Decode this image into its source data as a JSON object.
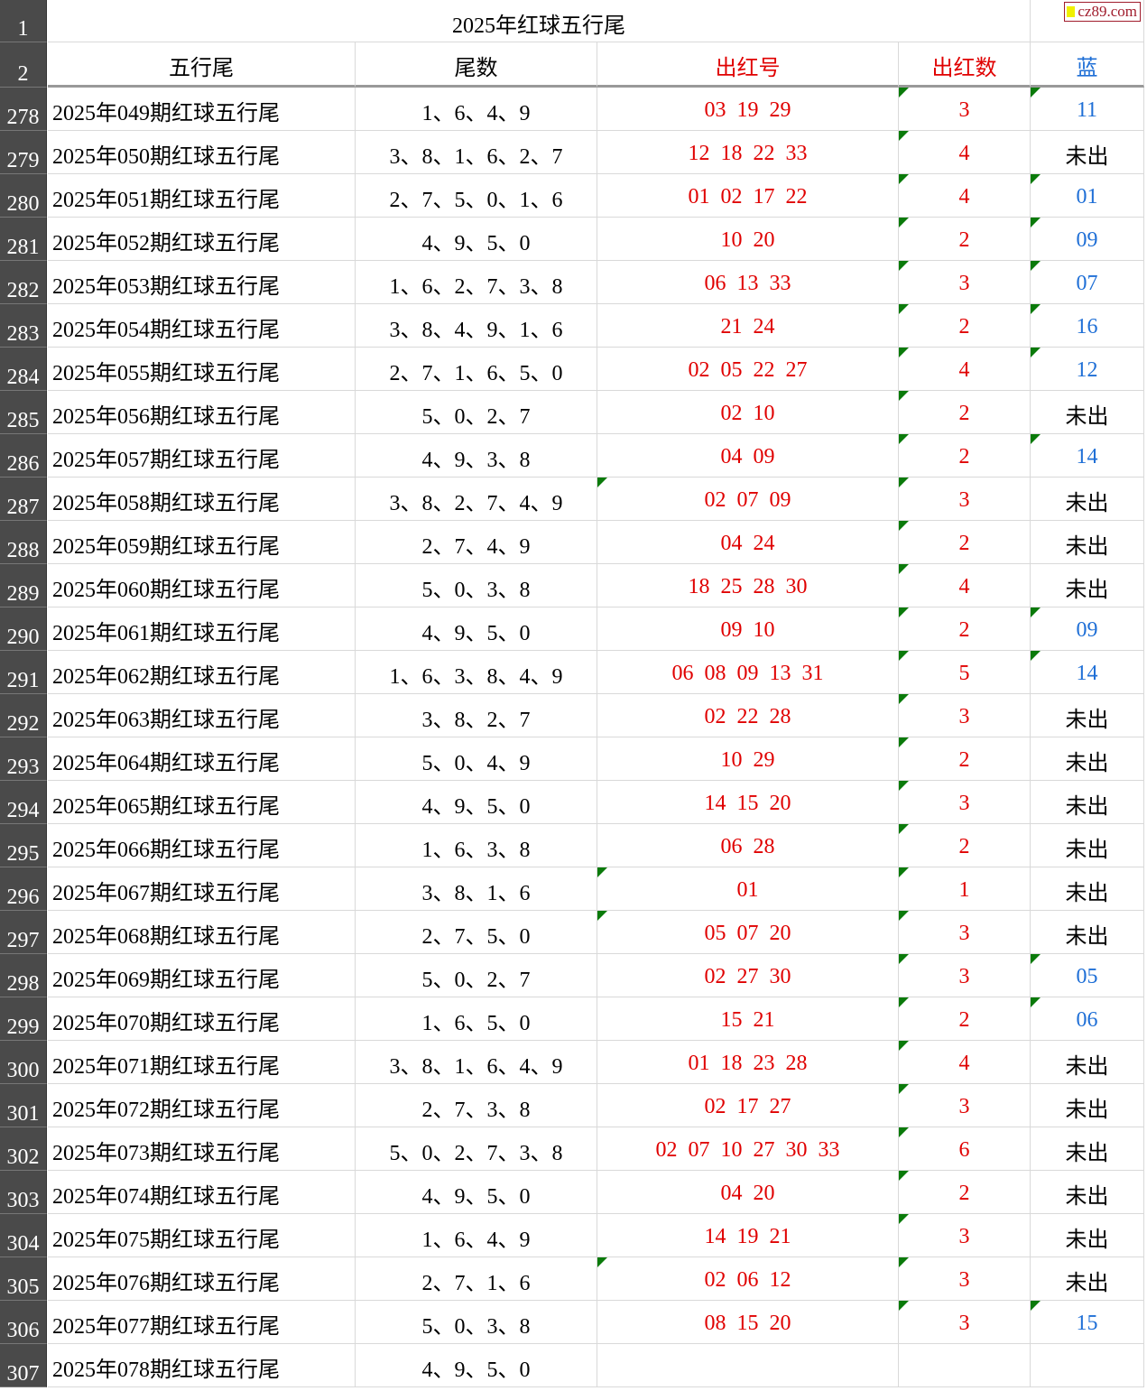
{
  "title": "2025年红球五行尾",
  "logo": "cz89.com",
  "title_row_num": "1",
  "header_row_num": "2",
  "headers": [
    "五行尾",
    "尾数",
    "出红号",
    "出红数",
    "蓝"
  ],
  "colors": {
    "red": "#e00000",
    "blue": "#1f6fd6",
    "marker": "#0a7a0a",
    "row_header_bg": "#4a4a4a"
  },
  "rows": [
    {
      "n": "278",
      "period": "2025年049期红球五行尾",
      "tails": "1、6、4、9",
      "reds": "03  19  29",
      "count": "3",
      "blue": "11",
      "flag": false
    },
    {
      "n": "279",
      "period": "2025年050期红球五行尾",
      "tails": "3、8、1、6、2、7",
      "reds": "12  18  22  33",
      "count": "4",
      "blue": "未出",
      "flag": false
    },
    {
      "n": "280",
      "period": "2025年051期红球五行尾",
      "tails": "2、7、5、0、1、6",
      "reds": "01  02  17  22",
      "count": "4",
      "blue": "01",
      "flag": false
    },
    {
      "n": "281",
      "period": "2025年052期红球五行尾",
      "tails": "4、9、5、0",
      "reds": "10  20",
      "count": "2",
      "blue": "09",
      "flag": false
    },
    {
      "n": "282",
      "period": "2025年053期红球五行尾",
      "tails": "1、6、2、7、3、8",
      "reds": "06  13  33",
      "count": "3",
      "blue": "07",
      "flag": false
    },
    {
      "n": "283",
      "period": "2025年054期红球五行尾",
      "tails": "3、8、4、9、1、6",
      "reds": "21  24",
      "count": "2",
      "blue": "16",
      "flag": false
    },
    {
      "n": "284",
      "period": "2025年055期红球五行尾",
      "tails": "2、7、1、6、5、0",
      "reds": "02  05  22  27",
      "count": "4",
      "blue": "12",
      "flag": false
    },
    {
      "n": "285",
      "period": "2025年056期红球五行尾",
      "tails": "5、0、2、7",
      "reds": "02  10",
      "count": "2",
      "blue": "未出",
      "flag": false
    },
    {
      "n": "286",
      "period": "2025年057期红球五行尾",
      "tails": "4、9、3、8",
      "reds": "04  09",
      "count": "2",
      "blue": "14",
      "flag": false
    },
    {
      "n": "287",
      "period": "2025年058期红球五行尾",
      "tails": "3、8、2、7、4、9",
      "reds": "02  07  09",
      "count": "3",
      "blue": "未出",
      "flag": true
    },
    {
      "n": "288",
      "period": "2025年059期红球五行尾",
      "tails": "2、7、4、9",
      "reds": "04  24",
      "count": "2",
      "blue": "未出",
      "flag": false
    },
    {
      "n": "289",
      "period": "2025年060期红球五行尾",
      "tails": "5、0、3、8",
      "reds": "18  25  28  30",
      "count": "4",
      "blue": "未出",
      "flag": false
    },
    {
      "n": "290",
      "period": "2025年061期红球五行尾",
      "tails": "4、9、5、0",
      "reds": "09  10",
      "count": "2",
      "blue": "09",
      "flag": false
    },
    {
      "n": "291",
      "period": "2025年062期红球五行尾",
      "tails": "1、6、3、8、4、9",
      "reds": "06  08  09  13  31",
      "count": "5",
      "blue": "14",
      "flag": false
    },
    {
      "n": "292",
      "period": "2025年063期红球五行尾",
      "tails": "3、8、2、7",
      "reds": "02  22  28",
      "count": "3",
      "blue": "未出",
      "flag": false
    },
    {
      "n": "293",
      "period": "2025年064期红球五行尾",
      "tails": "5、0、4、9",
      "reds": "10  29",
      "count": "2",
      "blue": "未出",
      "flag": false
    },
    {
      "n": "294",
      "period": "2025年065期红球五行尾",
      "tails": "4、9、5、0",
      "reds": "14  15  20",
      "count": "3",
      "blue": "未出",
      "flag": false
    },
    {
      "n": "295",
      "period": "2025年066期红球五行尾",
      "tails": "1、6、3、8",
      "reds": "06  28",
      "count": "2",
      "blue": "未出",
      "flag": false
    },
    {
      "n": "296",
      "period": "2025年067期红球五行尾",
      "tails": "3、8、1、6",
      "reds": "01",
      "count": "1",
      "blue": "未出",
      "flag": true
    },
    {
      "n": "297",
      "period": "2025年068期红球五行尾",
      "tails": "2、7、5、0",
      "reds": "05  07  20",
      "count": "3",
      "blue": "未出",
      "flag": true
    },
    {
      "n": "298",
      "period": "2025年069期红球五行尾",
      "tails": "5、0、2、7",
      "reds": "02  27  30",
      "count": "3",
      "blue": "05",
      "flag": false
    },
    {
      "n": "299",
      "period": "2025年070期红球五行尾",
      "tails": "1、6、5、0",
      "reds": "15  21",
      "count": "2",
      "blue": "06",
      "flag": false
    },
    {
      "n": "300",
      "period": "2025年071期红球五行尾",
      "tails": "3、8、1、6、4、9",
      "reds": "01  18  23  28",
      "count": "4",
      "blue": "未出",
      "flag": false
    },
    {
      "n": "301",
      "period": "2025年072期红球五行尾",
      "tails": "2、7、3、8",
      "reds": "02  17  27",
      "count": "3",
      "blue": "未出",
      "flag": false
    },
    {
      "n": "302",
      "period": "2025年073期红球五行尾",
      "tails": "5、0、2、7、3、8",
      "reds": "02  07  10  27  30  33",
      "count": "6",
      "blue": "未出",
      "flag": false
    },
    {
      "n": "303",
      "period": "2025年074期红球五行尾",
      "tails": "4、9、5、0",
      "reds": "04  20",
      "count": "2",
      "blue": "未出",
      "flag": false
    },
    {
      "n": "304",
      "period": "2025年075期红球五行尾",
      "tails": "1、6、4、9",
      "reds": "14  19  21",
      "count": "3",
      "blue": "未出",
      "flag": false
    },
    {
      "n": "305",
      "period": "2025年076期红球五行尾",
      "tails": "2、7、1、6",
      "reds": "02  06  12",
      "count": "3",
      "blue": "未出",
      "flag": true
    },
    {
      "n": "306",
      "period": "2025年077期红球五行尾",
      "tails": "5、0、3、8",
      "reds": "08  15  20",
      "count": "3",
      "blue": "15",
      "flag": false
    },
    {
      "n": "307",
      "period": "2025年078期红球五行尾",
      "tails": "4、9、5、0",
      "reds": "",
      "count": "",
      "blue": "",
      "flag": false
    }
  ]
}
